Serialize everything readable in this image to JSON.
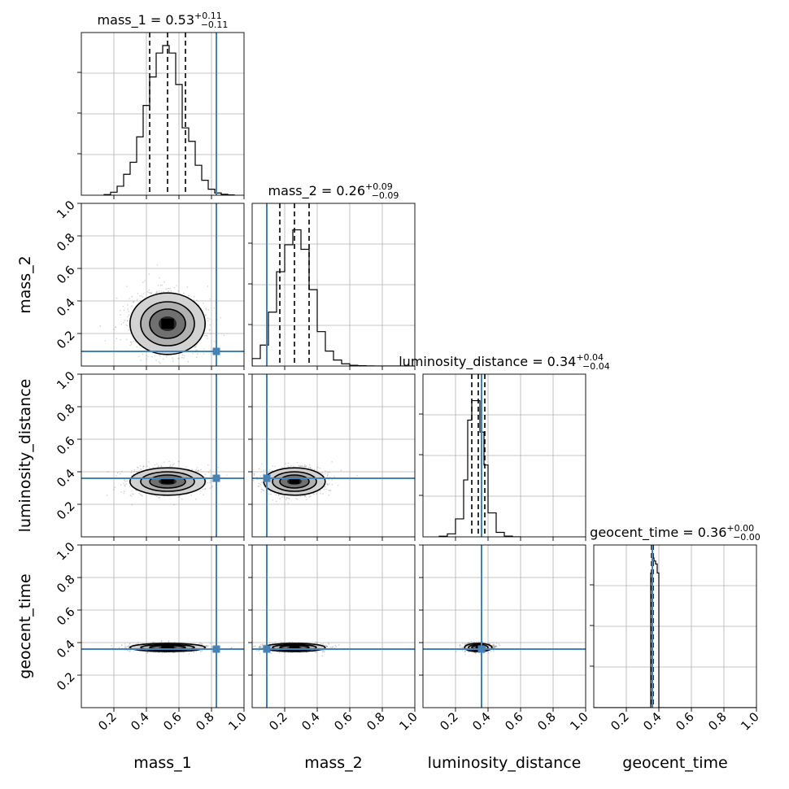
{
  "chart_data": {
    "type": "corner",
    "parameters": [
      "mass_1",
      "mass_2",
      "luminosity_distance",
      "geocent_time"
    ],
    "axis_range": [
      0,
      1
    ],
    "tick_values": [
      0.2,
      0.4,
      0.6,
      0.8,
      1.0
    ],
    "tick_labels": [
      "0.2",
      "0.4",
      "0.6",
      "0.8",
      "1.0"
    ],
    "grid": true,
    "colors": {
      "truth": "#4682b4",
      "line": "#000000",
      "grid": "#b0b0b0",
      "scatter": "#7a7a7a"
    },
    "truths": {
      "mass_1": 0.83,
      "mass_2": 0.09,
      "luminosity_distance": 0.36,
      "geocent_time": 0.36
    },
    "titles": [
      {
        "param": "mass_1",
        "prefix": "mass_1 = 0.53",
        "sup": "+0.11",
        "sub": "−0.11"
      },
      {
        "param": "mass_2",
        "prefix": "mass_2 = 0.26",
        "sup": "+0.09",
        "sub": "−0.09"
      },
      {
        "param": "luminosity_distance",
        "prefix": "luminosity_distance = 0.34",
        "sup": "+0.04",
        "sub": "−0.04"
      },
      {
        "param": "geocent_time",
        "prefix": "geocent_time = 0.36",
        "sup": "+0.00",
        "sub": "−0.00"
      }
    ],
    "marginals": [
      {
        "param": "mass_1",
        "quantiles": [
          0.42,
          0.53,
          0.64
        ],
        "bin_edges": [
          0.14,
          0.18,
          0.22,
          0.26,
          0.3,
          0.34,
          0.38,
          0.42,
          0.46,
          0.5,
          0.54,
          0.58,
          0.62,
          0.66,
          0.7,
          0.74,
          0.78,
          0.82,
          0.86,
          0.9,
          0.94
        ],
        "heights": [
          0.004,
          0.02,
          0.06,
          0.14,
          0.22,
          0.39,
          0.6,
          0.79,
          0.95,
          1.0,
          0.95,
          0.74,
          0.45,
          0.36,
          0.2,
          0.1,
          0.04,
          0.015,
          0.006,
          0.002
        ]
      },
      {
        "param": "mass_2",
        "quantiles": [
          0.17,
          0.26,
          0.35
        ],
        "bin_edges": [
          0.0,
          0.05,
          0.1,
          0.15,
          0.2,
          0.25,
          0.3,
          0.35,
          0.4,
          0.45,
          0.5,
          0.55,
          0.6,
          0.65,
          0.7,
          0.75,
          0.8,
          0.85,
          0.9,
          0.95,
          1.0
        ],
        "heights": [
          0.05,
          0.14,
          0.36,
          0.63,
          0.81,
          0.91,
          0.78,
          0.51,
          0.23,
          0.1,
          0.04,
          0.015,
          0.005,
          0.002,
          0.001,
          0.0,
          0.0,
          0.0,
          0.0,
          0.0
        ]
      },
      {
        "param": "luminosity_distance",
        "quantiles": [
          0.3,
          0.34,
          0.38
        ],
        "bin_edges": [
          0.1,
          0.15,
          0.2,
          0.25,
          0.275,
          0.3,
          0.325,
          0.35,
          0.375,
          0.4,
          0.45,
          0.5,
          0.55,
          0.6
        ],
        "heights": [
          0.004,
          0.02,
          0.12,
          0.38,
          0.78,
          0.91,
          0.91,
          0.7,
          0.48,
          0.16,
          0.03,
          0.005,
          0.0
        ]
      },
      {
        "param": "geocent_time",
        "quantiles": [
          0.355,
          0.36,
          0.365
        ],
        "bin_edges": [
          0.0,
          0.34,
          0.35,
          0.36,
          0.37,
          0.38,
          0.39,
          0.4,
          1.0
        ],
        "heights": [
          0.0,
          0.0,
          0.9,
          1.0,
          0.98,
          0.96,
          0.9,
          0.0
        ]
      }
    ],
    "joints": [
      {
        "row": 1,
        "col": 0,
        "x_param": "mass_1",
        "y_param": "mass_2",
        "mean": [
          0.53,
          0.26
        ],
        "sigma": [
          0.11,
          0.09
        ]
      },
      {
        "row": 2,
        "col": 0,
        "x_param": "mass_1",
        "y_param": "luminosity_distance",
        "mean": [
          0.53,
          0.34
        ],
        "sigma": [
          0.11,
          0.04
        ]
      },
      {
        "row": 2,
        "col": 1,
        "x_param": "mass_2",
        "y_param": "luminosity_distance",
        "mean": [
          0.26,
          0.34
        ],
        "sigma": [
          0.09,
          0.04
        ]
      },
      {
        "row": 3,
        "col": 0,
        "x_param": "mass_1",
        "y_param": "geocent_time",
        "mean": [
          0.53,
          0.37
        ],
        "sigma": [
          0.11,
          0.012
        ]
      },
      {
        "row": 3,
        "col": 1,
        "x_param": "mass_2",
        "y_param": "geocent_time",
        "mean": [
          0.26,
          0.37
        ],
        "sigma": [
          0.09,
          0.012
        ]
      },
      {
        "row": 3,
        "col": 2,
        "x_param": "luminosity_distance",
        "y_param": "geocent_time",
        "mean": [
          0.34,
          0.37
        ],
        "sigma": [
          0.04,
          0.012
        ]
      }
    ]
  }
}
